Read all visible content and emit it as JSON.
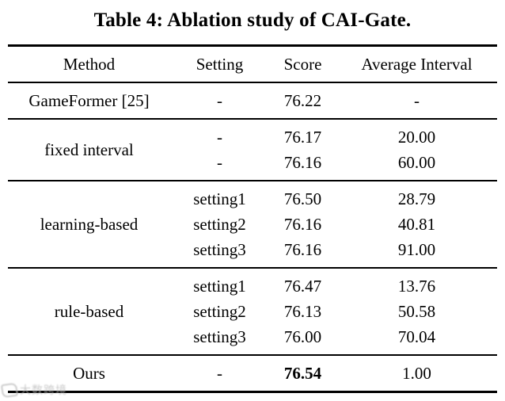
{
  "title": "Table 4: Ablation study of CAI-Gate.",
  "colors": {
    "text": "#000000",
    "background": "#ffffff",
    "rule": "#000000",
    "watermark": "#b9b9b9"
  },
  "table": {
    "columns": [
      "Method",
      "Setting",
      "Score",
      "Average Interval"
    ],
    "groups": [
      {
        "method": "GameFormer [25]",
        "rows": [
          {
            "setting": "-",
            "score": "76.22",
            "interval": "-"
          }
        ]
      },
      {
        "method": "fixed interval",
        "rows": [
          {
            "setting": "-",
            "score": "76.17",
            "interval": "20.00"
          },
          {
            "setting": "-",
            "score": "76.16",
            "interval": "60.00"
          }
        ]
      },
      {
        "method": "learning-based",
        "rows": [
          {
            "setting": "setting1",
            "score": "76.50",
            "interval": "28.79"
          },
          {
            "setting": "setting2",
            "score": "76.16",
            "interval": "40.81"
          },
          {
            "setting": "setting3",
            "score": "76.16",
            "interval": "91.00"
          }
        ]
      },
      {
        "method": "rule-based",
        "rows": [
          {
            "setting": "setting1",
            "score": "76.47",
            "interval": "13.76"
          },
          {
            "setting": "setting2",
            "score": "76.13",
            "interval": "50.58"
          },
          {
            "setting": "setting3",
            "score": "76.00",
            "interval": "70.04"
          }
        ]
      },
      {
        "method": "Ours",
        "rows": [
          {
            "setting": "-",
            "score": "76.54",
            "interval": "1.00"
          }
        ]
      }
    ]
  },
  "chart_data": {
    "type": "table",
    "title": "Table 4: Ablation study of CAI-Gate.",
    "columns": [
      "Method",
      "Setting",
      "Score",
      "Average Interval"
    ],
    "rows": [
      [
        "GameFormer [25]",
        "-",
        76.22,
        null
      ],
      [
        "fixed interval",
        "-",
        76.17,
        20.0
      ],
      [
        "fixed interval",
        "-",
        76.16,
        60.0
      ],
      [
        "learning-based",
        "setting1",
        76.5,
        28.79
      ],
      [
        "learning-based",
        "setting2",
        76.16,
        40.81
      ],
      [
        "learning-based",
        "setting3",
        76.16,
        91.0
      ],
      [
        "rule-based",
        "setting1",
        76.47,
        13.76
      ],
      [
        "rule-based",
        "setting2",
        76.13,
        50.58
      ],
      [
        "rule-based",
        "setting3",
        76.0,
        70.04
      ],
      [
        "Ours",
        "-",
        76.54,
        1.0
      ]
    ]
  },
  "watermark": {
    "text": "大数跨境"
  }
}
